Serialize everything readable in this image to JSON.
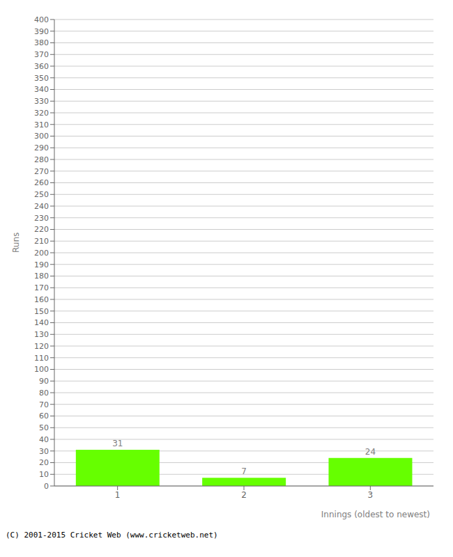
{
  "chart_data": {
    "type": "bar",
    "categories": [
      "1",
      "2",
      "3"
    ],
    "values": [
      31,
      7,
      24
    ],
    "color": "#66ff00",
    "xlabel": "Innings (oldest to newest)",
    "ylabel": "Runs",
    "ylim": [
      0,
      400
    ],
    "yticks": [
      0,
      10,
      20,
      30,
      40,
      50,
      60,
      70,
      80,
      90,
      100,
      110,
      120,
      130,
      140,
      150,
      160,
      170,
      180,
      190,
      200,
      210,
      220,
      230,
      240,
      250,
      260,
      270,
      280,
      290,
      300,
      310,
      320,
      330,
      340,
      350,
      360,
      370,
      380,
      390,
      400
    ],
    "grid": true,
    "data_labels": true,
    "annotations": [
      "(C) 2001-2015 Cricket Web (www.cricketweb.net)"
    ]
  }
}
